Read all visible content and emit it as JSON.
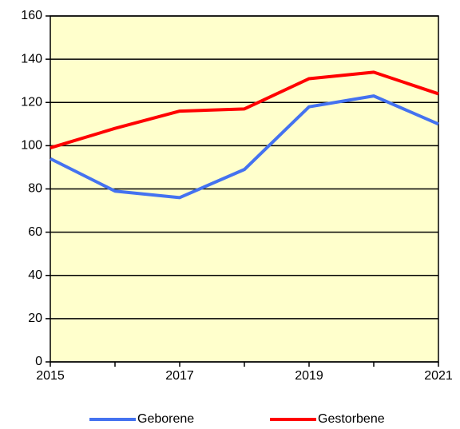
{
  "chart_data": {
    "type": "line",
    "x": [
      2015,
      2016,
      2017,
      2018,
      2019,
      2020,
      2021
    ],
    "series": [
      {
        "name": "Geborene",
        "color": "#4472f0",
        "values": [
          94,
          79,
          76,
          89,
          118,
          123,
          110
        ]
      },
      {
        "name": "Gestorbene",
        "color": "#ff0000",
        "values": [
          99,
          108,
          116,
          117,
          131,
          134,
          124
        ]
      }
    ],
    "xlim": [
      2015,
      2021
    ],
    "xticks": [
      2015,
      2017,
      2019,
      2021
    ],
    "x_minor_ticks": [
      2016,
      2018,
      2020
    ],
    "ylim": [
      0,
      160
    ],
    "yticks": [
      0,
      20,
      40,
      60,
      80,
      100,
      120,
      140,
      160
    ],
    "grid": true,
    "background": "#ffffcc",
    "legend": "bottom"
  }
}
